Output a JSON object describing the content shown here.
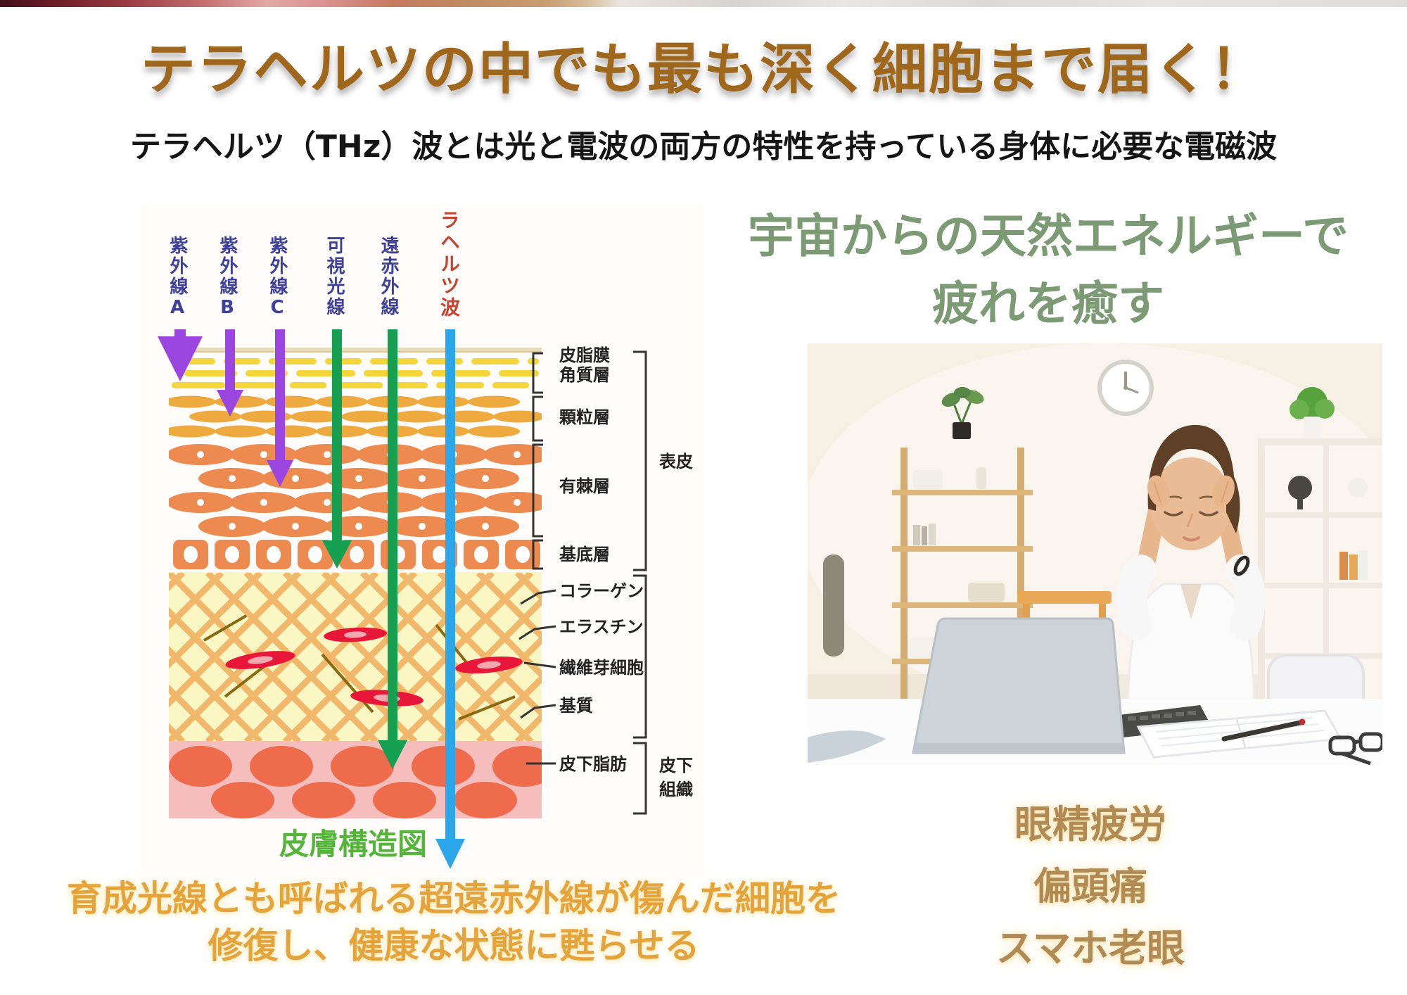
{
  "header": {
    "title": "テラヘルツの中でも最も深く細胞まで届く！",
    "subtitle": "テラヘルツ（THz）波とは光と電波の両方の特性を持っている身体に必要な電磁波"
  },
  "hero": {
    "heading_line1": "宇宙からの天然エネルギーで",
    "heading_line2": "疲れを癒す"
  },
  "diagram": {
    "caption": "皮膚構造図",
    "rays": [
      "紫外線A",
      "紫外線B",
      "紫外線C",
      "可視光線",
      "遠赤外線",
      "ラヘルツ波"
    ],
    "layers": [
      "皮脂膜",
      "角質層",
      "顆粒層",
      "有棘層",
      "基底層"
    ],
    "dermis_labels": [
      "コラーゲン",
      "エラスチン",
      "繊維芽細胞",
      "基質",
      "皮下脂肪"
    ],
    "brackets": {
      "epidermis": "表皮",
      "subcutis": "皮下\n組織"
    }
  },
  "symptoms": [
    "眼精疲労",
    "偏頭痛",
    "スマホ老眼"
  ],
  "benefit": {
    "line1": "育成光線とも呼ばれる超遠赤外線が傷んだ細胞を",
    "line2": "修復し、健康な状態に甦らせる"
  },
  "colors": {
    "title_brown": "#9e671b",
    "heading_green": "#7c9b75",
    "symptom_brown": "#b18a54",
    "benefit_orange": "#e4a33b",
    "ray_label_navy": "#3e4099",
    "thz_label_red": "#c44430",
    "uv_arrow_purple": "#9b46e0",
    "ray_arrow_green": "#14a050",
    "thz_arrow_blue": "#2ba6e8",
    "caption_green": "#55b43a",
    "corneum_yellow": "#f3d53c",
    "granular_orange": "#eeaa3e",
    "spinous_orange": "#ec8a4f",
    "dermis_cream": "#fbf7c5",
    "fat_pink": "#f6bdbd",
    "fat_cell_orange": "#ee6b4c"
  }
}
